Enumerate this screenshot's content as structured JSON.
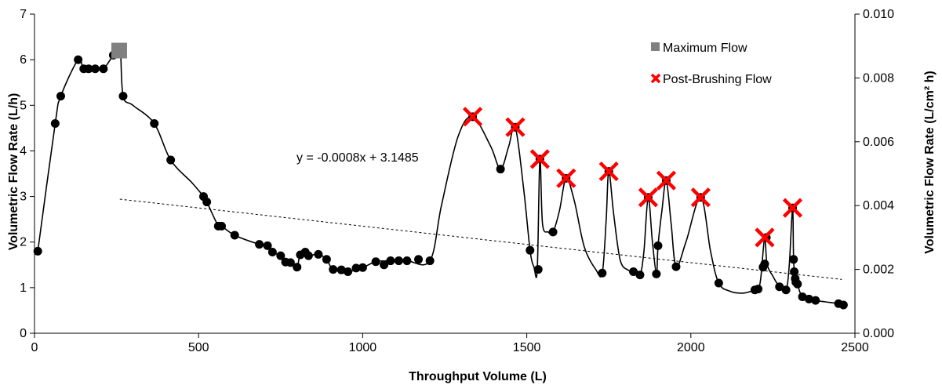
{
  "chart_data": {
    "type": "scatter",
    "xlabel": "Throughput Volume (L)",
    "ylabel": "Volumetric Flow Rate (L/h)",
    "y2label": "Volumetric Flow Rate (L/cm² h)",
    "xlim": [
      0,
      2500
    ],
    "ylim": [
      0,
      7
    ],
    "y2lim": [
      0,
      0.01
    ],
    "x_ticks": [
      "0",
      "500",
      "1000",
      "1500",
      "2000",
      "2500"
    ],
    "y_ticks": [
      "0",
      "1",
      "2",
      "3",
      "4",
      "5",
      "6",
      "7"
    ],
    "y2_ticks": [
      "0.000",
      "0.002",
      "0.004",
      "0.006",
      "0.008",
      "0.010"
    ],
    "grid": false,
    "legend_position": "top-right",
    "series": [
      {
        "style": "circle",
        "x": [
          10,
          63,
          80,
          133,
          150,
          165,
          185,
          210,
          240,
          255,
          270,
          365,
          415,
          515,
          525,
          560,
          570,
          610,
          685,
          710,
          725,
          750,
          765,
          780,
          800,
          810,
          825,
          835,
          865,
          890,
          910,
          935,
          955,
          980,
          1000,
          1040,
          1065,
          1085,
          1110,
          1135,
          1170,
          1205,
          1335,
          1420,
          1465,
          1510,
          1535,
          1540,
          1580,
          1620,
          1730,
          1750,
          1825,
          1845,
          1870,
          1895,
          1900,
          1925,
          1955,
          2030,
          2085,
          2195,
          2205,
          2220,
          2225,
          2230,
          2270,
          2290,
          2310,
          2313,
          2315,
          2318,
          2320,
          2325,
          2340,
          2360,
          2380,
          2450,
          2465
        ],
        "y": [
          1.8,
          4.6,
          5.2,
          6.0,
          5.8,
          5.8,
          5.8,
          5.8,
          6.1,
          6.2,
          5.2,
          4.6,
          3.8,
          3.0,
          2.88,
          2.35,
          2.35,
          2.15,
          1.95,
          1.92,
          1.78,
          1.7,
          1.56,
          1.55,
          1.45,
          1.72,
          1.78,
          1.7,
          1.73,
          1.62,
          1.4,
          1.39,
          1.35,
          1.43,
          1.44,
          1.57,
          1.5,
          1.59,
          1.59,
          1.59,
          1.62,
          1.59,
          4.75,
          3.6,
          4.52,
          1.82,
          1.4,
          3.82,
          2.22,
          3.4,
          1.32,
          3.55,
          1.35,
          1.28,
          2.98,
          1.3,
          1.92,
          3.35,
          1.46,
          2.98,
          1.1,
          0.95,
          0.97,
          1.45,
          1.52,
          2.1,
          1.02,
          0.95,
          2.75,
          1.62,
          1.35,
          1.2,
          1.12,
          1.08,
          0.8,
          0.75,
          0.72,
          0.65,
          0.62
        ]
      },
      {
        "name": "Maximum Flow",
        "style": "square",
        "x": [
          258
        ],
        "y": [
          6.2
        ]
      },
      {
        "name": "Post-Brushing Flow",
        "style": "x",
        "x": [
          1335,
          1465,
          1540,
          1620,
          1750,
          1870,
          1925,
          2030,
          2225,
          2310
        ],
        "y": [
          4.75,
          4.52,
          3.82,
          3.4,
          3.55,
          2.98,
          3.35,
          2.98,
          2.1,
          2.75
        ]
      }
    ],
    "trendline": {
      "label": "y = -0.0008x + 3.1485",
      "slope": -0.0008,
      "intercept": 3.1485,
      "x_range": [
        260,
        2460
      ]
    },
    "curve": {
      "x": [
        10,
        63,
        80,
        133,
        150,
        185,
        210,
        240,
        255,
        262,
        270,
        300,
        365,
        415,
        480,
        515,
        525,
        560,
        570,
        610,
        685,
        710,
        725,
        750,
        780,
        800,
        810,
        835,
        865,
        890,
        910,
        955,
        1000,
        1040,
        1085,
        1135,
        1205,
        1240,
        1290,
        1335,
        1390,
        1420,
        1445,
        1465,
        1490,
        1510,
        1522,
        1532,
        1540,
        1548,
        1565,
        1580,
        1600,
        1620,
        1645,
        1675,
        1710,
        1730,
        1742,
        1750,
        1765,
        1785,
        1810,
        1825,
        1845,
        1857,
        1870,
        1883,
        1895,
        1900,
        1912,
        1925,
        1940,
        1955,
        1985,
        2030,
        2060,
        2085,
        2120,
        2160,
        2195,
        2205,
        2213,
        2225,
        2232,
        2250,
        2270,
        2290,
        2300,
        2310,
        2313,
        2318,
        2325,
        2340,
        2380,
        2450,
        2465
      ],
      "y": [
        1.8,
        4.6,
        5.2,
        6.0,
        5.8,
        5.8,
        5.8,
        6.1,
        6.2,
        6.2,
        5.2,
        5.0,
        4.6,
        3.8,
        3.3,
        3.0,
        2.88,
        2.35,
        2.35,
        2.15,
        1.95,
        1.92,
        1.78,
        1.7,
        1.55,
        1.45,
        1.72,
        1.7,
        1.73,
        1.62,
        1.4,
        1.35,
        1.44,
        1.57,
        1.59,
        1.59,
        1.59,
        2.8,
        4.3,
        4.75,
        4.1,
        3.6,
        4.1,
        4.52,
        3.2,
        1.82,
        1.45,
        1.4,
        3.82,
        2.4,
        2.22,
        2.22,
        2.7,
        3.4,
        2.9,
        1.9,
        1.4,
        1.32,
        2.5,
        3.55,
        2.6,
        1.6,
        1.38,
        1.35,
        1.28,
        1.8,
        2.98,
        2.0,
        1.3,
        1.92,
        2.7,
        3.35,
        2.4,
        1.46,
        2.0,
        2.98,
        1.8,
        1.1,
        0.92,
        0.88,
        0.95,
        0.97,
        1.2,
        2.1,
        1.52,
        1.25,
        1.02,
        0.95,
        1.5,
        2.75,
        1.62,
        1.2,
        1.08,
        0.8,
        0.72,
        0.65,
        0.62
      ]
    }
  }
}
